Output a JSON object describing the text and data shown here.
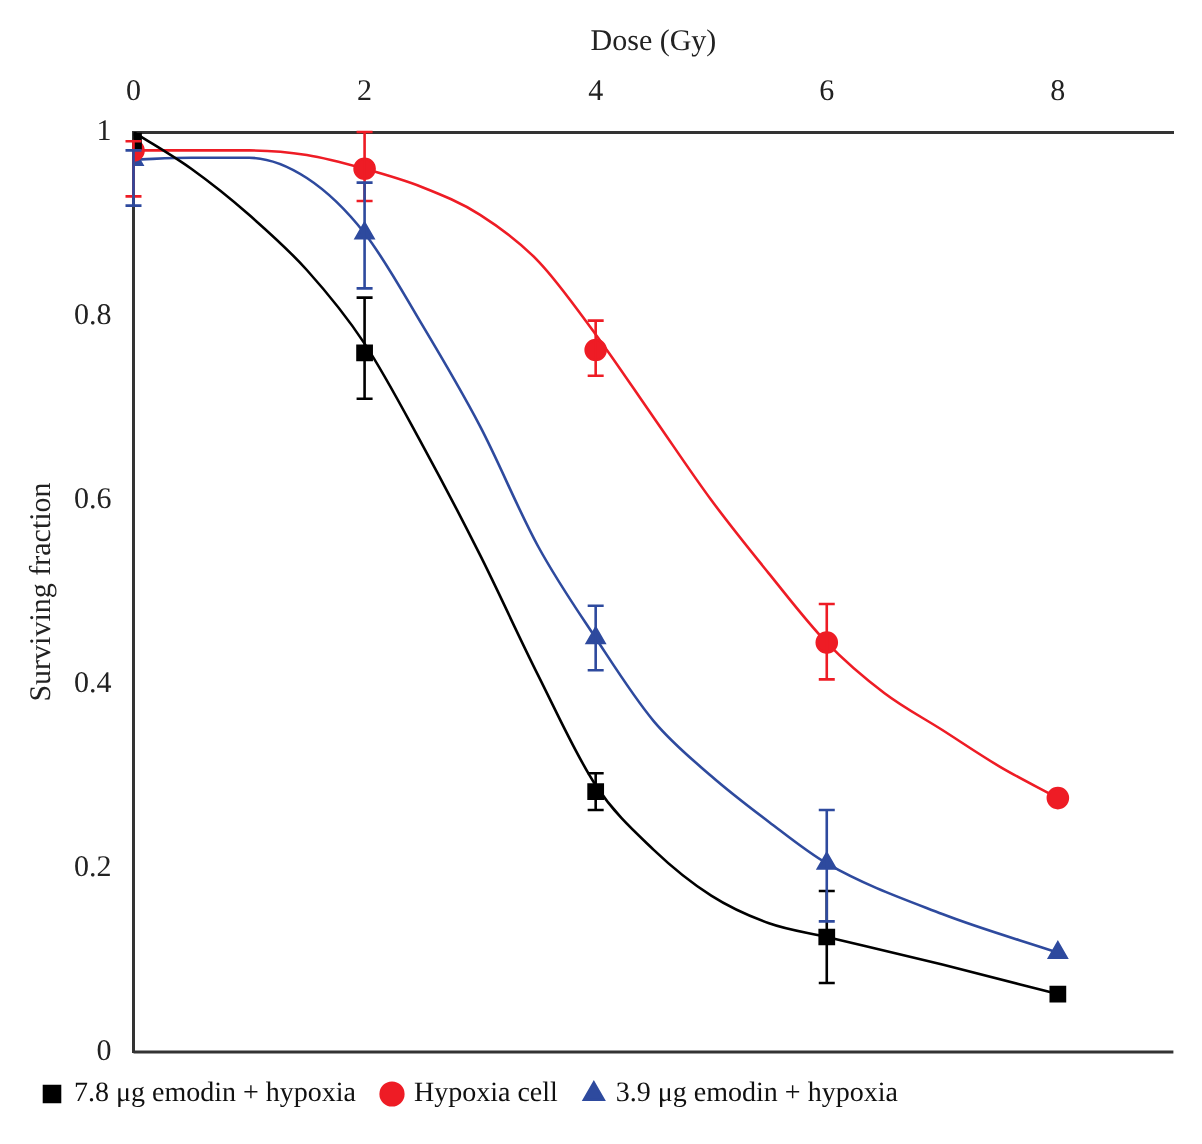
{
  "chart_data": {
    "type": "scatter",
    "xlabel": "Dose (Gy)",
    "ylabel": "Surviving fraction",
    "xlim": [
      0,
      9
    ],
    "xticks": [
      0,
      2,
      4,
      6,
      8
    ],
    "ylim": [
      0,
      1
    ],
    "yticks": [
      0,
      0.2,
      0.4,
      0.6,
      0.8,
      1
    ],
    "grid": false,
    "legend": "bottom",
    "x": [
      0,
      2,
      4,
      6,
      8
    ],
    "series": [
      {
        "name": "7.8 μg emodin + hypoxia",
        "color": "#000000",
        "marker": "square",
        "values": [
          0.99,
          0.76,
          0.283,
          0.125,
          0.063
        ],
        "errors": [
          null,
          [
            0.71,
            0.82
          ],
          [
            0.263,
            0.303
          ],
          [
            0.075,
            0.175
          ],
          null
        ]
      },
      {
        "name": "Hypoxia cell",
        "color": "#ee1c25",
        "marker": "circle",
        "values": [
          0.98,
          0.96,
          0.763,
          0.445,
          0.276
        ],
        "errors": [
          [
            0.93,
            0.99
          ],
          [
            0.925,
            1.0
          ],
          [
            0.735,
            0.795
          ],
          [
            0.405,
            0.487
          ],
          null
        ]
      },
      {
        "name": "3.9 μg emodin + hypoxia",
        "color": "#2e4a9e",
        "marker": "triangle",
        "values": [
          0.97,
          0.89,
          0.45,
          0.205,
          0.108
        ],
        "errors": [
          [
            0.92,
            0.98
          ],
          [
            0.83,
            0.945
          ],
          [
            0.415,
            0.485
          ],
          [
            0.142,
            0.263
          ],
          null
        ]
      },
      {
        "type": "line",
        "color": "#000000",
        "marker": "none",
        "x": [
          0,
          0.5,
          1,
          1.5,
          2,
          2.5,
          3,
          3.5,
          4,
          4.5,
          5,
          5.5,
          6,
          7,
          8
        ],
        "values": [
          1,
          0.96,
          0.91,
          0.85,
          0.77,
          0.66,
          0.54,
          0.41,
          0.29,
          0.22,
          0.17,
          0.14,
          0.125,
          0.095,
          0.063
        ]
      },
      {
        "type": "line",
        "color": "#ee1c25",
        "marker": "none",
        "x": [
          0,
          1,
          1.5,
          2,
          2.5,
          3,
          3.5,
          4,
          4.5,
          5,
          5.5,
          6,
          6.5,
          7,
          7.5,
          8
        ],
        "values": [
          0.98,
          0.98,
          0.975,
          0.96,
          0.94,
          0.91,
          0.86,
          0.78,
          0.69,
          0.6,
          0.52,
          0.445,
          0.39,
          0.35,
          0.31,
          0.276
        ]
      },
      {
        "type": "line",
        "color": "#2e4a9e",
        "marker": "none",
        "x": [
          0,
          0.5,
          1,
          1.5,
          2,
          2.5,
          3,
          3.5,
          4,
          4.5,
          5,
          5.5,
          6,
          7,
          8
        ],
        "values": [
          0.97,
          0.972,
          0.972,
          0.95,
          0.89,
          0.79,
          0.68,
          0.55,
          0.45,
          0.36,
          0.3,
          0.25,
          0.205,
          0.15,
          0.108
        ]
      }
    ]
  }
}
